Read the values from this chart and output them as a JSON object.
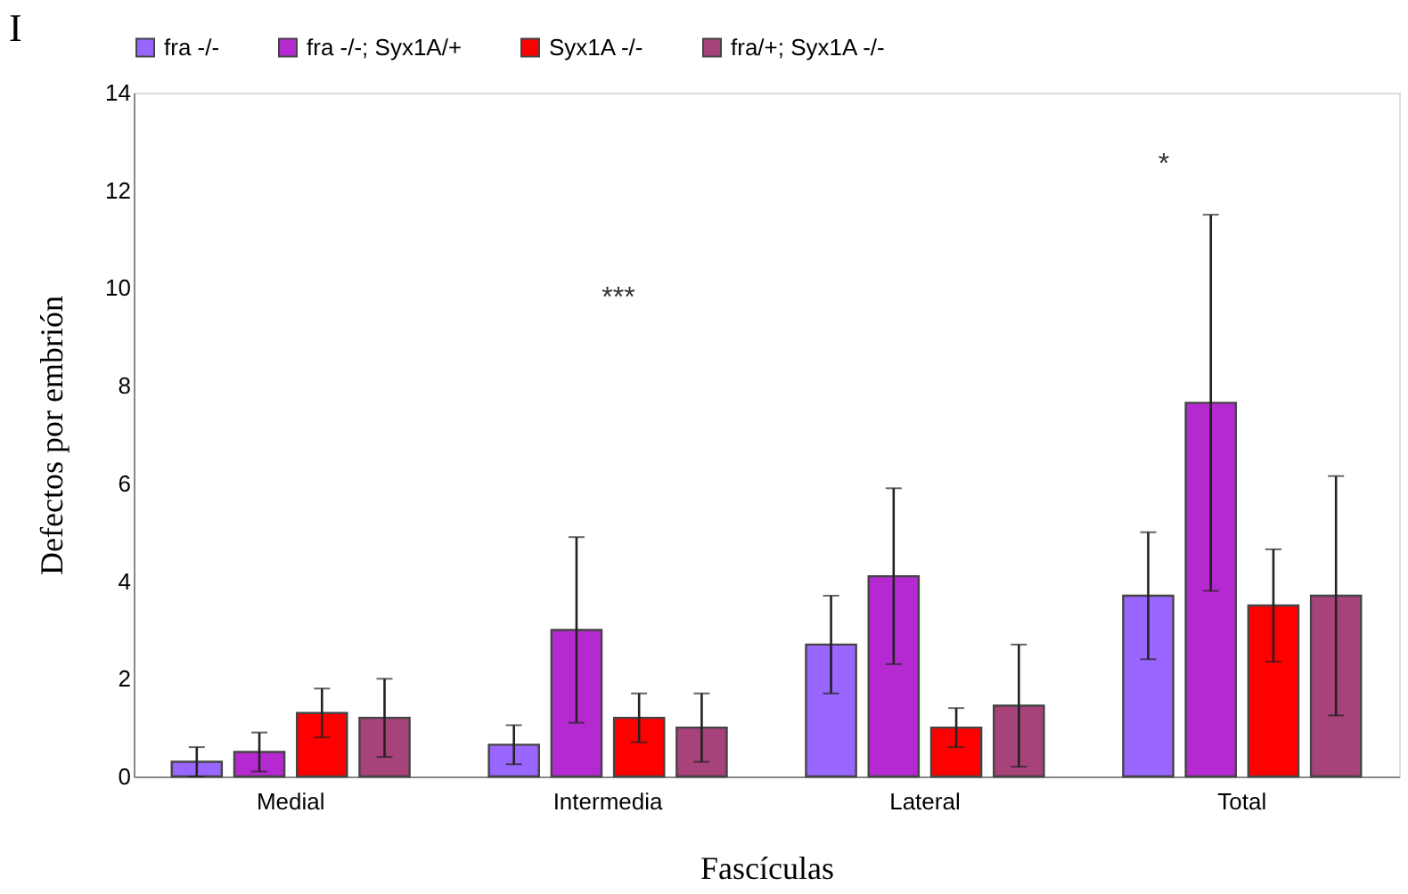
{
  "chart_data": {
    "type": "bar",
    "xlabel": "Fascículas",
    "ylabel": "Defectos por embrión",
    "categories": [
      "Medial",
      "Intermedia",
      "Lateral",
      "Total"
    ],
    "series": [
      {
        "name": "fra -/-",
        "color": "#9966ff",
        "values": [
          0.3,
          0.65,
          2.7,
          3.7
        ],
        "errors": [
          0.3,
          0.4,
          1.0,
          1.3
        ]
      },
      {
        "name": "fra -/-; Syx1A/+",
        "color": "#b52ad0",
        "values": [
          0.5,
          3.0,
          4.1,
          7.65
        ],
        "errors": [
          0.4,
          1.9,
          1.8,
          3.85
        ]
      },
      {
        "name": "Syx1A -/-",
        "color": "#ff0000",
        "values": [
          1.3,
          1.2,
          1.0,
          3.5
        ],
        "errors": [
          0.5,
          0.5,
          0.4,
          1.15
        ]
      },
      {
        "name": "fra/+; Syx1A -/-",
        "color": "#a8427a",
        "values": [
          1.2,
          1.0,
          1.45,
          3.7
        ],
        "errors": [
          0.8,
          0.7,
          1.25,
          2.45
        ]
      }
    ],
    "ylim": [
      0,
      14
    ],
    "yticks": [
      0,
      2,
      4,
      6,
      8,
      10,
      12,
      14
    ],
    "grid": false,
    "legend": "top",
    "annotations": [
      "I",
      "***",
      "*"
    ]
  }
}
